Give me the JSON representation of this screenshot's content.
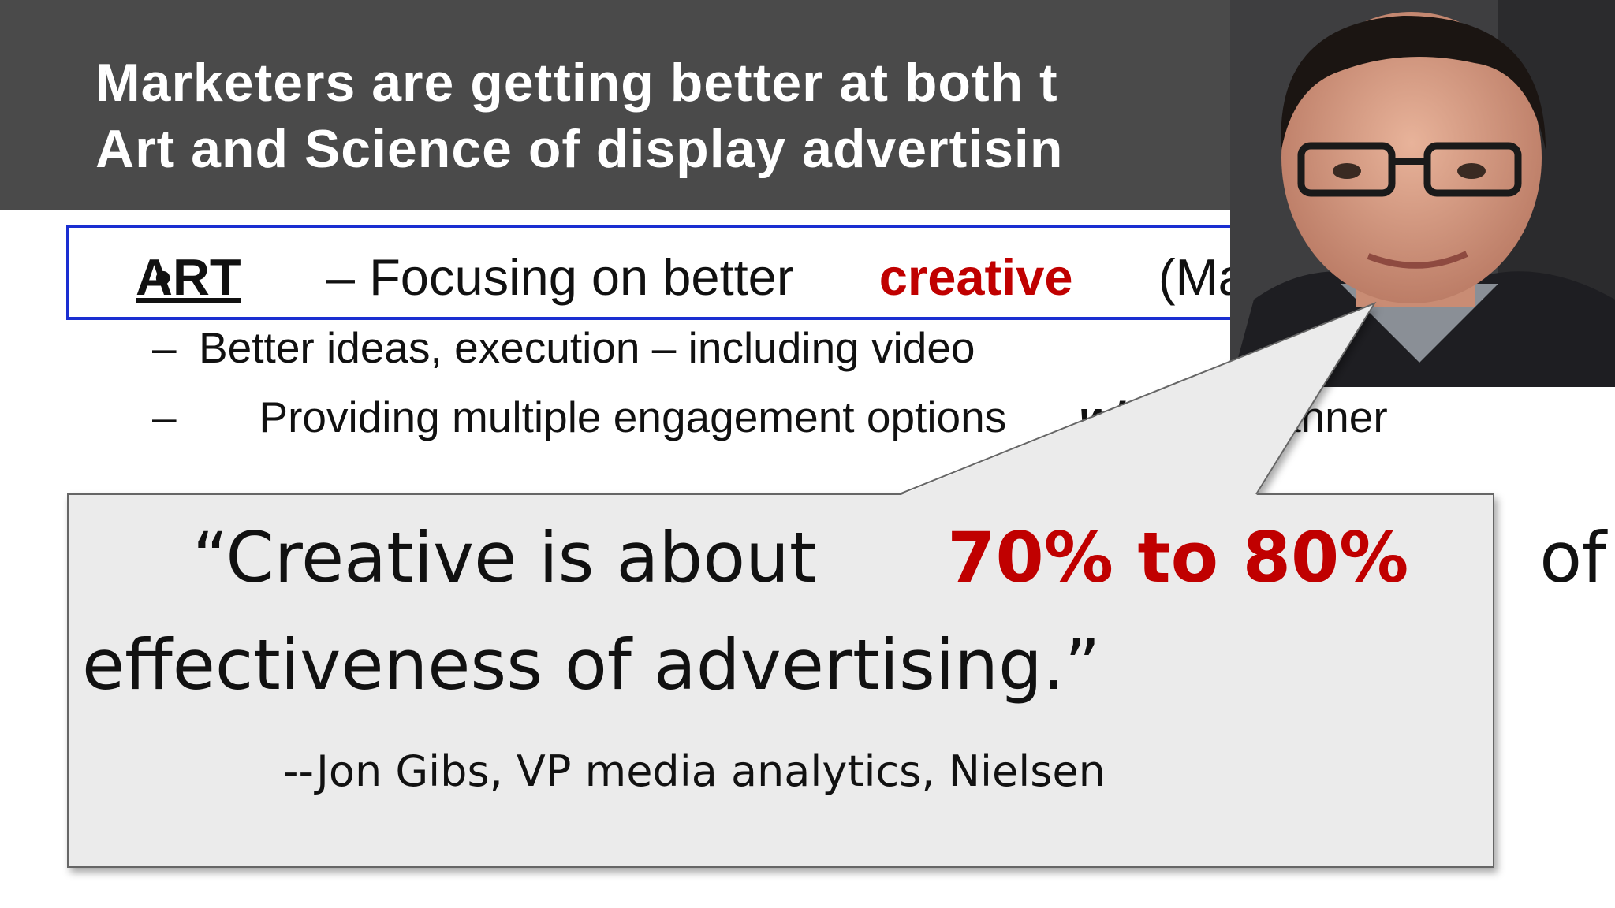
{
  "header": {
    "title_lines": [
      "Marketers are getting better at both t",
      "Art and Science of display advertisin"
    ]
  },
  "bullet": {
    "marker": "•",
    "term": "ART",
    "text": "– Focusing on better",
    "emphasis": "creative",
    "tail": "(Magnet"
  },
  "sub_bullets": {
    "marker": "–",
    "items": [
      {
        "text": "Better ideas, execution – including video"
      },
      {
        "text": "Providing multiple engagement options",
        "emphasis": "wit",
        "tail": "anner"
      }
    ]
  },
  "callout": {
    "quote_start": "“Creative is about",
    "highlight": "70% to 80%",
    "quote_end": "of the",
    "line2": "effectiveness of advertising.”",
    "attribution": "--Jon Gibs, VP media analytics, Nielsen"
  }
}
